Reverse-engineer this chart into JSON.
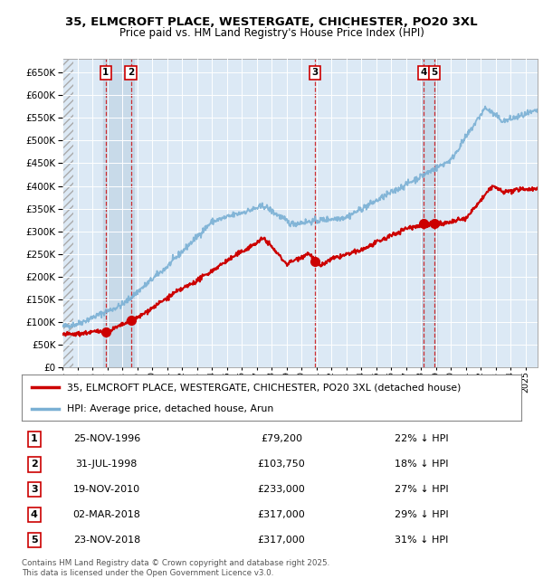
{
  "title_line1": "35, ELMCROFT PLACE, WESTERGATE, CHICHESTER, PO20 3XL",
  "title_line2": "Price paid vs. HM Land Registry's House Price Index (HPI)",
  "plot_bg_color": "#dce9f5",
  "hpi_color": "#7ab0d4",
  "price_color": "#cc0000",
  "purchases": [
    {
      "num": 1,
      "date_num": 1996.9,
      "price": 79200,
      "label": "25-NOV-1996",
      "pct": "22% ↓ HPI"
    },
    {
      "num": 2,
      "date_num": 1998.58,
      "price": 103750,
      "label": "31-JUL-1998",
      "pct": "18% ↓ HPI"
    },
    {
      "num": 3,
      "date_num": 2010.89,
      "price": 233000,
      "label": "19-NOV-2010",
      "pct": "27% ↓ HPI"
    },
    {
      "num": 4,
      "date_num": 2018.17,
      "price": 317000,
      "label": "02-MAR-2018",
      "pct": "29% ↓ HPI"
    },
    {
      "num": 5,
      "date_num": 2018.9,
      "price": 317000,
      "label": "23-NOV-2018",
      "pct": "31% ↓ HPI"
    }
  ],
  "row_prices": [
    "£79,200",
    "£103,750",
    "£233,000",
    "£317,000",
    "£317,000"
  ],
  "xlim": [
    1994.0,
    2025.8
  ],
  "ylim": [
    0,
    680000
  ],
  "yticks": [
    0,
    50000,
    100000,
    150000,
    200000,
    250000,
    300000,
    350000,
    400000,
    450000,
    500000,
    550000,
    600000,
    650000
  ],
  "xticks": [
    1994,
    1995,
    1996,
    1997,
    1998,
    1999,
    2000,
    2001,
    2002,
    2003,
    2004,
    2005,
    2006,
    2007,
    2008,
    2009,
    2010,
    2011,
    2012,
    2013,
    2014,
    2015,
    2016,
    2017,
    2018,
    2019,
    2020,
    2021,
    2022,
    2023,
    2024,
    2025
  ],
  "legend_red_label": "35, ELMCROFT PLACE, WESTERGATE, CHICHESTER, PO20 3XL (detached house)",
  "legend_blue_label": "HPI: Average price, detached house, Arun",
  "footer_line1": "Contains HM Land Registry data © Crown copyright and database right 2025.",
  "footer_line2": "This data is licensed under the Open Government Licence v3.0."
}
